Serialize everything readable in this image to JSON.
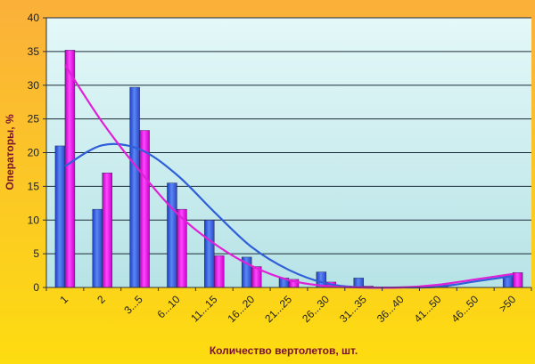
{
  "chart_data": {
    "type": "bar",
    "title": "",
    "xlabel": "Количество вертолетов, шт.",
    "ylabel": "Операторы, %",
    "ylim": [
      0,
      40
    ],
    "yticks": [
      0,
      5,
      10,
      15,
      20,
      25,
      30,
      35,
      40
    ],
    "grid": true,
    "legend": "none",
    "categories": [
      "1",
      "2",
      "3...5",
      "6...10",
      "11...15",
      "16...20",
      "21...25",
      "26...30",
      "31...35",
      "36...40",
      "41...50",
      "46...50",
      ">50"
    ],
    "series": [
      {
        "color": "#3a63e0",
        "values": [
          21,
          11.6,
          29.7,
          15.5,
          10,
          4.5,
          1.4,
          2.3,
          1.4,
          0,
          0,
          0,
          1.8
        ],
        "trend": [
          18,
          21.1,
          20.5,
          16.7,
          11.2,
          6,
          2.6,
          0.6,
          0,
          0,
          0.1,
          0.9,
          1.7
        ]
      },
      {
        "color": "#ee12ee",
        "values": [
          35.2,
          17,
          23.3,
          11.6,
          4.7,
          3.1,
          1.2,
          0.8,
          0.2,
          0,
          0.4,
          0,
          2.2
        ],
        "trend": [
          33,
          24.5,
          17.3,
          11,
          6.5,
          3.2,
          1.1,
          0.2,
          0,
          0,
          0.4,
          1.2,
          2
        ]
      }
    ]
  }
}
